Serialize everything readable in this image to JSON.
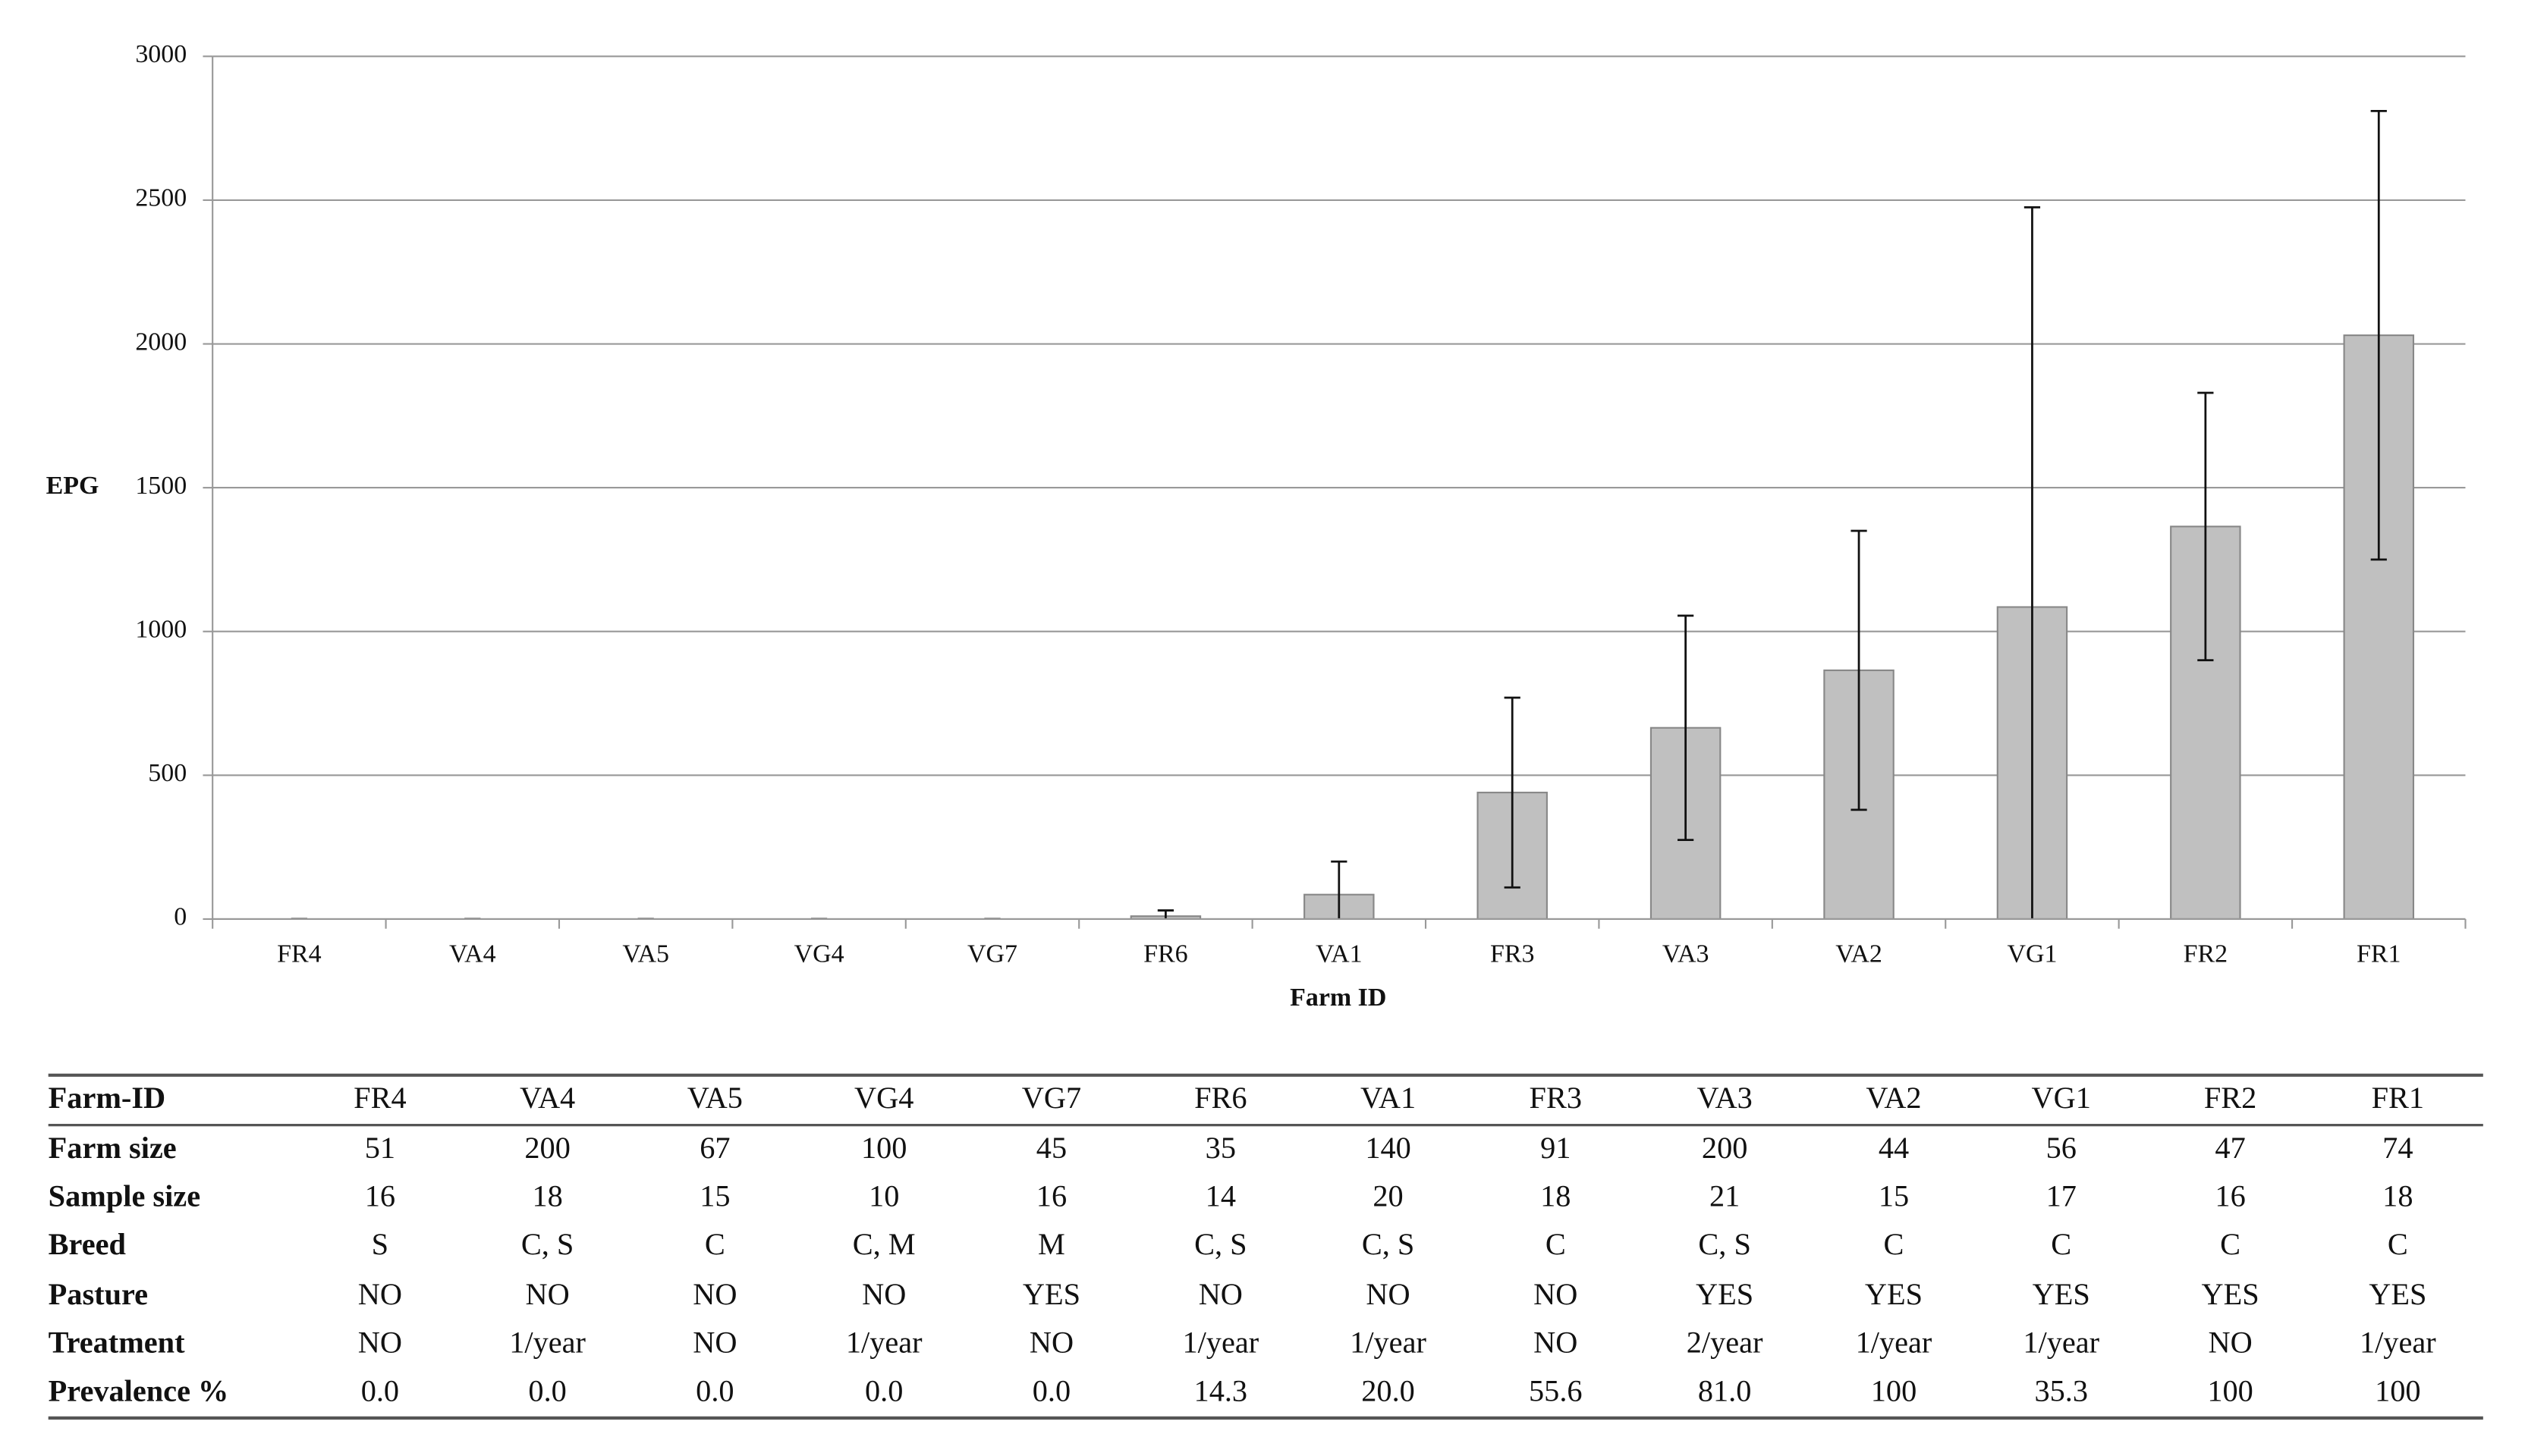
{
  "chart_data": {
    "type": "bar",
    "x_label": "Farm ID",
    "y_label": "EPG",
    "categories": [
      "FR4",
      "VA4",
      "VA5",
      "VG4",
      "VG7",
      "FR6",
      "VA1",
      "FR3",
      "VA3",
      "VA2",
      "VG1",
      "FR2",
      "FR1"
    ],
    "values": [
      0,
      0,
      0,
      0,
      0,
      10,
      85,
      440,
      665,
      865,
      1085,
      1365,
      2030
    ],
    "errors": [
      0,
      0,
      0,
      0,
      0,
      20,
      115,
      330,
      390,
      485,
      1390,
      465,
      780
    ],
    "color": "#c0c0c0",
    "ylim": [
      0,
      3000
    ],
    "yticks": [
      0,
      500,
      1000,
      1500,
      2000,
      2500,
      3000
    ],
    "grid": true
  },
  "table": {
    "header": [
      "Farm-ID",
      "FR4",
      "VA4",
      "VA5",
      "VG4",
      "VG7",
      "FR6",
      "VA1",
      "FR3",
      "VA3",
      "VA2",
      "VG1",
      "FR2",
      "FR1"
    ],
    "rows": [
      [
        "Farm size",
        "51",
        "200",
        "67",
        "100",
        "45",
        "35",
        "140",
        "91",
        "200",
        "44",
        "56",
        "47",
        "74"
      ],
      [
        "Sample size",
        "16",
        "18",
        "15",
        "10",
        "16",
        "14",
        "20",
        "18",
        "21",
        "15",
        "17",
        "16",
        "18"
      ],
      [
        "Breed",
        "S",
        "C, S",
        "C",
        "C, M",
        "M",
        "C, S",
        "C, S",
        "C",
        "C, S",
        "C",
        "C",
        "C",
        "C"
      ],
      [
        "Pasture",
        "NO",
        "NO",
        "NO",
        "NO",
        "YES",
        "NO",
        "NO",
        "NO",
        "YES",
        "YES",
        "YES",
        "YES",
        "YES"
      ],
      [
        "Treatment",
        "NO",
        "1/year",
        "NO",
        "1/year",
        "NO",
        "1/year",
        "1/year",
        "NO",
        "2/year",
        "1/year",
        "1/year",
        "NO",
        "1/year"
      ],
      [
        "Prevalence %",
        "0.0",
        "0.0",
        "0.0",
        "0.0",
        "0.0",
        "14.3",
        "20.0",
        "55.6",
        "81.0",
        "100",
        "35.3",
        "100",
        "100"
      ]
    ]
  }
}
